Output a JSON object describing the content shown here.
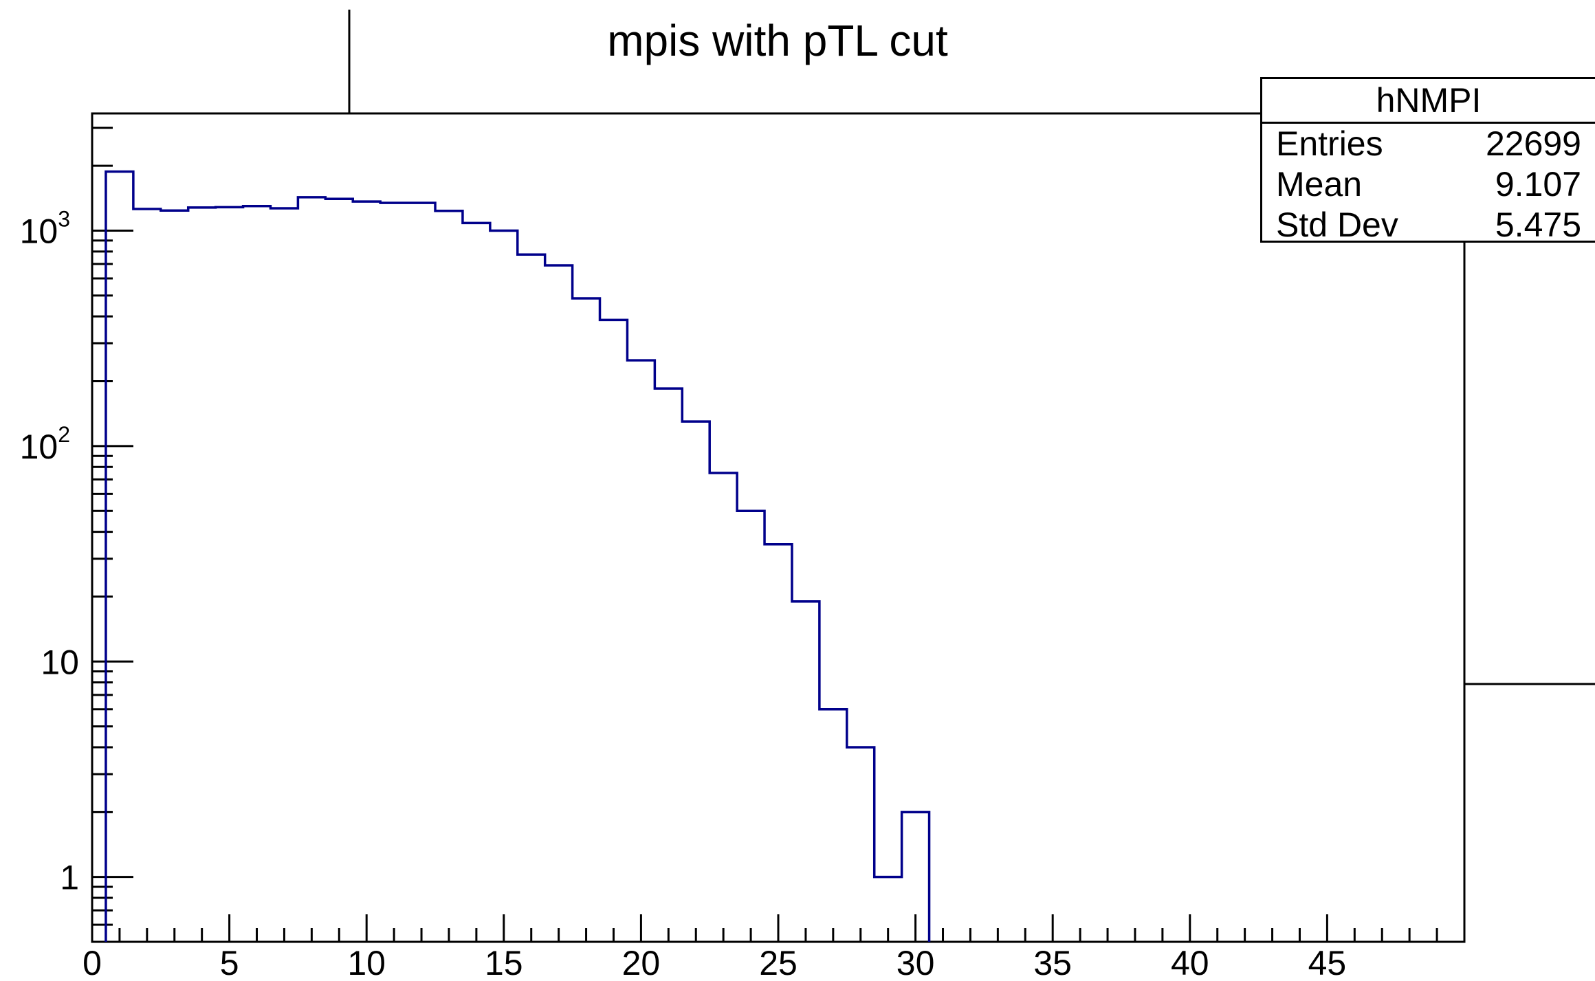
{
  "chart_data": {
    "type": "bar",
    "title": "mpis with pTL cut",
    "xlabel": "",
    "ylabel": "",
    "xlim": [
      0,
      50
    ],
    "ylim": [
      0.5,
      3500
    ],
    "log_y": true,
    "grid": false,
    "x_ticks": [
      "0",
      "5",
      "10",
      "15",
      "20",
      "25",
      "30",
      "35",
      "40",
      "45"
    ],
    "y_ticks": [
      "1",
      "10",
      "10^2",
      "10^3"
    ],
    "bin_width": 1,
    "bins_low_edge": [
      0.5,
      1.5,
      2.5,
      3.5,
      4.5,
      5.5,
      6.5,
      7.5,
      8.5,
      9.5,
      10.5,
      11.5,
      12.5,
      13.5,
      14.5,
      15.5,
      16.5,
      17.5,
      18.5,
      19.5,
      20.5,
      21.5,
      22.5,
      23.5,
      24.5,
      25.5,
      26.5,
      27.5,
      28.5,
      29.5
    ],
    "values": [
      1880,
      1260,
      1240,
      1280,
      1285,
      1300,
      1270,
      1430,
      1405,
      1365,
      1345,
      1345,
      1235,
      1085,
      1000,
      775,
      690,
      485,
      385,
      250,
      185,
      130,
      75,
      50,
      35,
      19,
      6,
      4,
      1,
      2
    ],
    "line_color": "#00008b",
    "stats_box": {
      "name": "hNMPI",
      "rows": [
        {
          "label": "Entries",
          "value": "22699"
        },
        {
          "label": "Mean",
          "value": "9.107"
        },
        {
          "label": "Std Dev",
          "value": "5.475"
        }
      ],
      "placement": "top-right"
    }
  }
}
